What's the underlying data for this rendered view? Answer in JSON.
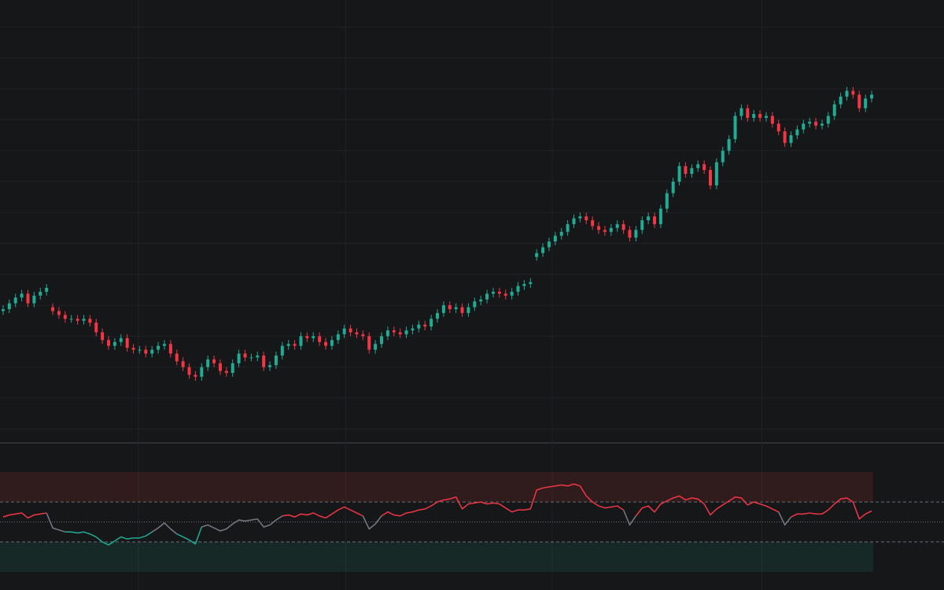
{
  "chart_data": [
    {
      "type": "candlestick",
      "up_color": "#22ab94",
      "down_color": "#f23645",
      "grid": true,
      "xlim": [
        -0.5,
        140.5
      ],
      "xticks": [
        21.8,
        55.2,
        88.5,
        122.3
      ],
      "ylim": [
        -3,
        111
      ],
      "yticks": [
        0,
        8,
        16,
        24,
        32,
        40,
        48,
        56,
        64,
        72,
        80,
        88,
        96,
        104
      ],
      "open": [
        30.5,
        31,
        32.5,
        34,
        35,
        32.5,
        34.5,
        35.5,
        31.5,
        30.5,
        29.5,
        28.5,
        28.5,
        28,
        28.5,
        27.5,
        25,
        23,
        21.5,
        22.5,
        23.5,
        21,
        20.5,
        20.5,
        19.5,
        20.5,
        21.5,
        22,
        19.5,
        17.5,
        16,
        14,
        13.5,
        16,
        18,
        17,
        15,
        14.5,
        17,
        19.5,
        18.5,
        18.5,
        19,
        16,
        16.5,
        19,
        21.5,
        22,
        21.5,
        24,
        23.5,
        24,
        22.5,
        21.5,
        23,
        24.5,
        26,
        25,
        24.5,
        24,
        20.5,
        22,
        24,
        25.5,
        25,
        24.5,
        25.5,
        26,
        27,
        26.5,
        28.5,
        30,
        32,
        31,
        31.5,
        30,
        31.5,
        33,
        33.5,
        35,
        35.5,
        35,
        34.5,
        35.5,
        37,
        37.5,
        44.5,
        45.5,
        47,
        48.5,
        50,
        51,
        53,
        54.5,
        55,
        54,
        52.5,
        51.5,
        51,
        52,
        53,
        51.5,
        49.5,
        51.5,
        54,
        55,
        53,
        57,
        61,
        64,
        68,
        66,
        67.5,
        68.5,
        67,
        63,
        69,
        72,
        75,
        81,
        83,
        80.5,
        81.5,
        80.5,
        81,
        79,
        77,
        74,
        76,
        77.5,
        79,
        79.5,
        78.5,
        79,
        81,
        84,
        86,
        87.5,
        86.5,
        83,
        85.5
      ],
      "high": [
        32,
        33.5,
        35,
        36,
        36,
        35.5,
        36.5,
        37.5,
        32.5,
        31.5,
        30.5,
        29.5,
        29.5,
        29.5,
        29.5,
        28.5,
        26,
        24,
        23.5,
        24.5,
        24.5,
        22,
        21.5,
        21.5,
        21.5,
        22.5,
        23,
        23,
        20.5,
        18.5,
        17,
        15,
        17,
        19,
        19,
        18,
        16,
        18,
        20.5,
        20.5,
        19.5,
        20,
        20,
        17.5,
        20,
        22.5,
        23,
        23,
        25,
        25,
        25,
        25,
        23.5,
        24,
        25.5,
        27,
        27,
        26,
        25.5,
        25,
        23,
        25,
        26.5,
        26.5,
        26,
        26.5,
        27,
        28,
        28,
        29.5,
        31,
        33,
        33,
        32.5,
        32.5,
        32.5,
        34,
        34.5,
        36,
        36.5,
        36.5,
        36,
        36.5,
        38,
        38.5,
        39,
        46.5,
        48,
        49.5,
        51,
        52,
        54,
        55.5,
        56,
        56,
        55,
        53.5,
        52.5,
        53,
        54,
        54,
        52.5,
        52.5,
        55,
        56,
        56,
        58,
        62,
        65,
        69,
        69,
        68.5,
        69.5,
        69.5,
        68,
        70,
        73,
        76,
        82,
        84,
        84,
        82.5,
        82.5,
        82,
        82,
        80,
        78,
        77,
        78.5,
        80,
        80.5,
        80.5,
        80,
        82,
        85,
        87,
        88.5,
        88.5,
        87.5,
        86.5,
        87.5
      ],
      "low": [
        29.5,
        30,
        31.5,
        33,
        31.5,
        31.5,
        33.5,
        34.5,
        29.5,
        28.5,
        27.5,
        27.5,
        27,
        27,
        26.5,
        24,
        22,
        20.5,
        20.5,
        21.5,
        20,
        19.5,
        19.5,
        18.5,
        18.5,
        19.5,
        20.5,
        18.5,
        16.5,
        15,
        13,
        12.5,
        12.5,
        15,
        16,
        14,
        13.5,
        13.5,
        16,
        17.5,
        17.5,
        17.5,
        15,
        15,
        15.5,
        18,
        20.5,
        20.5,
        20.5,
        22.5,
        22.5,
        21.5,
        20.5,
        20.5,
        22,
        23.5,
        24,
        23.5,
        23,
        19.5,
        19.5,
        21,
        23,
        24,
        23.5,
        23.5,
        24.5,
        25,
        25.5,
        25.5,
        27.5,
        29,
        30,
        30,
        29,
        29,
        30.5,
        32,
        32.5,
        34,
        34,
        33.5,
        33.5,
        34.5,
        36,
        36.5,
        43.5,
        44.5,
        46,
        47.5,
        49,
        50,
        52,
        53.5,
        53,
        51.5,
        50.5,
        50,
        50,
        51,
        50.5,
        48.5,
        48.5,
        50.5,
        53,
        52,
        52,
        56,
        60,
        63,
        65,
        65,
        66.5,
        66,
        62,
        62,
        68,
        71,
        74,
        80,
        79.5,
        79.5,
        79.5,
        79.5,
        78,
        76,
        73,
        73,
        75,
        76.5,
        78,
        77.5,
        77.5,
        78,
        80,
        83,
        85,
        85.5,
        82,
        82,
        84.5
      ],
      "close": [
        31,
        32.5,
        34,
        35,
        32.5,
        34.5,
        35.5,
        36.5,
        30.5,
        29.5,
        28.5,
        28.5,
        28,
        28.5,
        27.5,
        25,
        23,
        21.5,
        22.5,
        23.5,
        21,
        20.5,
        20.5,
        19.5,
        20.5,
        21.5,
        22,
        19.5,
        17.5,
        16,
        14,
        13.5,
        16,
        18,
        17,
        15,
        14.5,
        17,
        19.5,
        18.5,
        18.5,
        19,
        16,
        16.5,
        19,
        21.5,
        22,
        21.5,
        24,
        23.5,
        24,
        22.5,
        21.5,
        23,
        24.5,
        26,
        25,
        24.5,
        24,
        20.5,
        22,
        24,
        25.5,
        25,
        24.5,
        25.5,
        26,
        27,
        26.5,
        28.5,
        30,
        32,
        31,
        31.5,
        30,
        31.5,
        33,
        33.5,
        35,
        35.5,
        35,
        34.5,
        35.5,
        37,
        37.5,
        38,
        45.5,
        47,
        48.5,
        50,
        51,
        53,
        54.5,
        55,
        54,
        52.5,
        51.5,
        51,
        52,
        53,
        51.5,
        49.5,
        51.5,
        54,
        55,
        53,
        57,
        61,
        64,
        68,
        66,
        67.5,
        68.5,
        67,
        63,
        69,
        72,
        75,
        81,
        83,
        80.5,
        81.5,
        80.5,
        81,
        79,
        77,
        74,
        76,
        77.5,
        79,
        79.5,
        78.5,
        79,
        81,
        84,
        86,
        87.5,
        86.5,
        83,
        85.5,
        86.5
      ]
    },
    {
      "type": "line",
      "xlim": [
        -0.5,
        140.5
      ],
      "ylim": [
        0,
        100
      ],
      "yticks": [
        30,
        50,
        70
      ],
      "bands": [
        {
          "range": [
            70,
            100
          ],
          "color": "#f23645"
        },
        {
          "range": [
            0,
            30
          ],
          "color": "#22ab94"
        }
      ],
      "colors": {
        "high": "#f23645",
        "mid": "#787b86",
        "low": "#22ab94"
      },
      "color_levels": [
        40,
        55
      ],
      "values": [
        55,
        57,
        58,
        59,
        54,
        57,
        58,
        59,
        44,
        42,
        40,
        40,
        39,
        40,
        38,
        35,
        30,
        27,
        31,
        35,
        33,
        34,
        34,
        36,
        40,
        44,
        49,
        43,
        38,
        35,
        32,
        28,
        45,
        47,
        44,
        41,
        43,
        48,
        52,
        51,
        52,
        53,
        45,
        47,
        52,
        56,
        57,
        55,
        58,
        57,
        59,
        56,
        54,
        58,
        62,
        65,
        62,
        59,
        56,
        43,
        48,
        56,
        60,
        57,
        56,
        59,
        60,
        62,
        63,
        66,
        70,
        72,
        73,
        75,
        63,
        68,
        69,
        70,
        68,
        69,
        68,
        64,
        60,
        62,
        62,
        63,
        82,
        84,
        85,
        86,
        87,
        86,
        88,
        86,
        76,
        70,
        66,
        64,
        65,
        66,
        62,
        47,
        56,
        64,
        66,
        60,
        68,
        71,
        74,
        76,
        72,
        74,
        73,
        68,
        57,
        63,
        67,
        71,
        75,
        74,
        67,
        70,
        68,
        66,
        63,
        60,
        47,
        55,
        58,
        58,
        59,
        58,
        58,
        62,
        68,
        73,
        74,
        70,
        53,
        58,
        61
      ]
    }
  ]
}
